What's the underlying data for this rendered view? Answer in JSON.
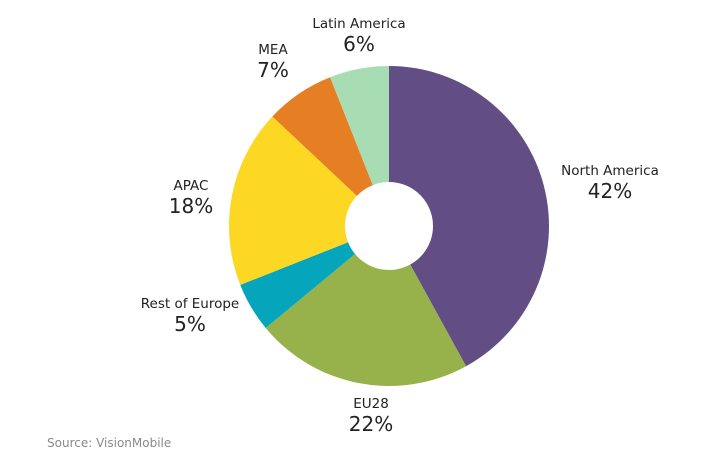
{
  "chart_data": {
    "type": "pie",
    "donut": true,
    "categories": [
      "North America",
      "EU28",
      "Rest of Europe",
      "APAC",
      "MEA",
      "Latin America"
    ],
    "values": [
      42,
      22,
      5,
      18,
      7,
      6
    ],
    "value_labels": [
      "42%",
      "22%",
      "5%",
      "18%",
      "7%",
      "6%"
    ],
    "colors": [
      "#634d85",
      "#97b24b",
      "#05a6bc",
      "#fcd723",
      "#e67f23",
      "#a8ddb3"
    ],
    "start_angle_deg": 0,
    "direction": "clockwise"
  },
  "source": "Source: VisionMobile"
}
